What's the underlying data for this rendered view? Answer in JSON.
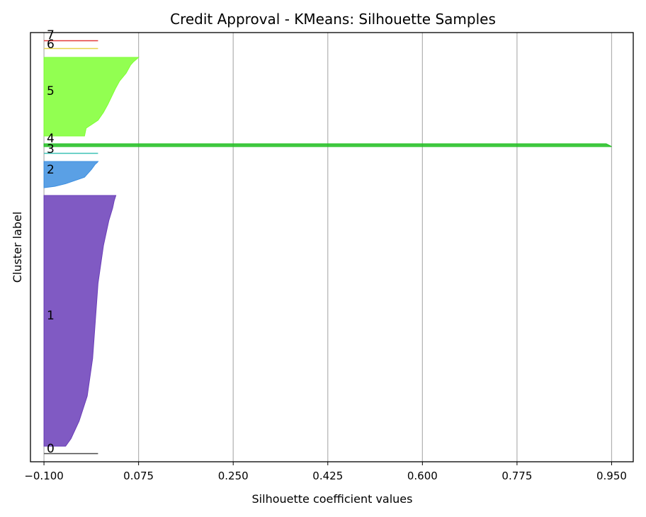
{
  "chart_data": {
    "type": "area",
    "title": "Credit Approval - KMeans: Silhouette Samples",
    "xlabel": "Silhouette coefficient values",
    "ylabel": "Cluster label",
    "xlim": [
      -0.125,
      0.99
    ],
    "xticks": [
      -0.1,
      0.075,
      0.25,
      0.425,
      0.6,
      0.775,
      0.95
    ],
    "xtick_labels": [
      "−0.100",
      "0.075",
      "0.250",
      "0.425",
      "0.600",
      "0.775",
      "0.950"
    ],
    "grid": "vertical",
    "clusters": [
      {
        "label": "0",
        "color": "#4a4a4a",
        "band_pixels": [
          640,
          641
        ],
        "profile": [
          [
            0,
            0.0
          ]
        ]
      },
      {
        "label": "1",
        "color": "#6a3db8",
        "band_pixels": [
          276,
          630
        ],
        "profile": [
          [
            0,
            0.033
          ],
          [
            0.02,
            0.03
          ],
          [
            0.05,
            0.027
          ],
          [
            0.1,
            0.02
          ],
          [
            0.2,
            0.01
          ],
          [
            0.35,
            0.0
          ],
          [
            0.5,
            -0.005
          ],
          [
            0.65,
            -0.01
          ],
          [
            0.8,
            -0.02
          ],
          [
            0.9,
            -0.035
          ],
          [
            0.97,
            -0.05
          ],
          [
            1,
            -0.06
          ]
        ]
      },
      {
        "label": "2",
        "color": "#3d8fe0",
        "band_pixels": [
          228,
          265
        ],
        "profile": [
          [
            0,
            0.0
          ],
          [
            0.05,
            -0.002
          ],
          [
            0.1,
            -0.005
          ],
          [
            0.3,
            -0.012
          ],
          [
            0.6,
            -0.025
          ],
          [
            0.85,
            -0.06
          ],
          [
            0.95,
            -0.08
          ],
          [
            1,
            -0.1
          ]
        ]
      },
      {
        "label": "3",
        "color": "#3cc2b5",
        "band_pixels": [
          216,
          217
        ],
        "profile": [
          [
            0,
            0.0
          ]
        ]
      },
      {
        "label": "4",
        "color": "#22c022",
        "band_pixels": [
          203,
          207
        ],
        "profile": [
          [
            0,
            0.94
          ],
          [
            1,
            0.95
          ]
        ]
      },
      {
        "label": "5",
        "color": "#7fff33",
        "band_pixels": [
          81,
          192
        ],
        "profile": [
          [
            0,
            0.075
          ],
          [
            0.03,
            0.07
          ],
          [
            0.06,
            0.065
          ],
          [
            0.1,
            0.06
          ],
          [
            0.2,
            0.052
          ],
          [
            0.3,
            0.04
          ],
          [
            0.4,
            0.032
          ],
          [
            0.5,
            0.025
          ],
          [
            0.6,
            0.018
          ],
          [
            0.7,
            0.01
          ],
          [
            0.8,
            0.0
          ],
          [
            0.9,
            -0.022
          ],
          [
            1,
            -0.025
          ]
        ]
      },
      {
        "label": "6",
        "color": "#e8d44a",
        "band_pixels": [
          68,
          69
        ],
        "profile": [
          [
            0,
            0.0
          ]
        ]
      },
      {
        "label": "7",
        "color": "#e23b3b",
        "band_pixels": [
          57,
          58
        ],
        "profile": [
          [
            0,
            0.0
          ]
        ]
      }
    ]
  }
}
